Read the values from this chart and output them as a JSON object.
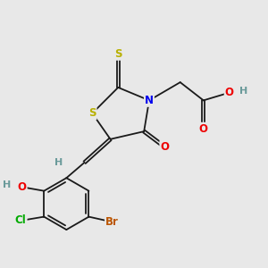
{
  "background_color": "#e8e8e8",
  "bond_color": "#1a1a1a",
  "bond_width": 1.3,
  "atom_colors": {
    "S": "#b8b000",
    "N": "#0000ee",
    "O": "#ee0000",
    "Br": "#bb5500",
    "Cl": "#00aa00",
    "H": "#6a9a9a",
    "C": "#1a1a1a"
  },
  "font_size": 8.5,
  "fig_width": 3.0,
  "fig_height": 3.0,
  "dpi": 100
}
